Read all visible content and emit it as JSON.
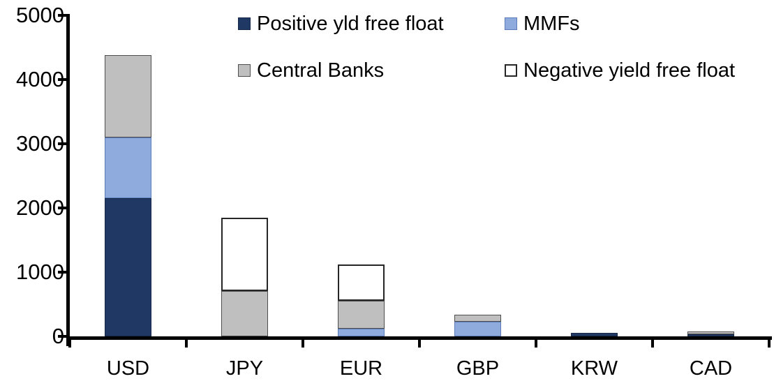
{
  "chart_data": {
    "type": "bar",
    "stacked": true,
    "title": "",
    "xlabel": "",
    "ylabel": "",
    "categories": [
      "USD",
      "JPY",
      "EUR",
      "GBP",
      "KRW",
      "CAD"
    ],
    "series": [
      {
        "name": "Positive yld free float",
        "color": "#1F3864",
        "values": [
          2150,
          0,
          0,
          0,
          55,
          30
        ]
      },
      {
        "name": "MMFs",
        "color": "#8FAADC",
        "values": [
          950,
          0,
          120,
          230,
          0,
          0
        ]
      },
      {
        "name": "Central Banks",
        "color": "#BFBFBF",
        "values": [
          1280,
          710,
          430,
          110,
          0,
          50
        ]
      },
      {
        "name": "Negative yield free float",
        "color": "#FFFFFF",
        "values": [
          0,
          1140,
          570,
          0,
          0,
          0
        ]
      }
    ],
    "totals": [
      4380,
      1850,
      1120,
      340,
      55,
      80
    ],
    "ylim": [
      0,
      5000
    ],
    "yticks": [
      0,
      1000,
      2000,
      3000,
      4000,
      5000
    ],
    "grid": false,
    "legend_position": "top",
    "legend_layout": [
      [
        "Positive yld free float",
        "MMFs"
      ],
      [
        "Central Banks",
        "Negative yield free float"
      ]
    ],
    "axis_color": "#000000",
    "background_color": "#FFFFFF"
  }
}
